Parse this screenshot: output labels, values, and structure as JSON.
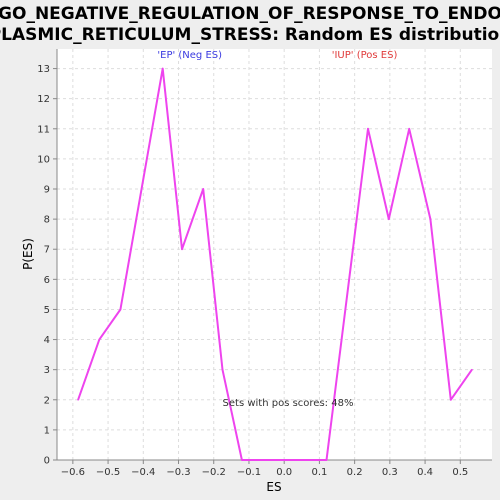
{
  "chart_data": {
    "type": "line",
    "title_lines": [
      "GO_NEGATIVE_REGULATION_OF_RESPONSE_TO_ENDO",
      "PLASMIC_RETICULUM_STRESS: Random ES distribution"
    ],
    "xlabel": "ES",
    "ylabel": "P(ES)",
    "xlim": [
      -0.645,
      0.59
    ],
    "ylim": [
      0,
      13.65
    ],
    "x_ticks": [
      -0.6,
      -0.5,
      -0.4,
      -0.3,
      -0.2,
      -0.1,
      0.0,
      0.1,
      0.2,
      0.3,
      0.4,
      0.5
    ],
    "x_tick_labels": [
      "−0.6",
      "−0.5",
      "−0.4",
      "−0.3",
      "−0.2",
      "−0.1",
      "0.0",
      "0.1",
      "0.2",
      "0.3",
      "0.4",
      "0.5"
    ],
    "y_ticks": [
      0,
      1,
      2,
      3,
      4,
      5,
      6,
      7,
      8,
      9,
      10,
      11,
      12,
      13
    ],
    "y_tick_labels": [
      "0",
      "1",
      "2",
      "3",
      "4",
      "5",
      "6",
      "7",
      "8",
      "9",
      "10",
      "11",
      "12",
      "13"
    ],
    "grid": true,
    "series": [
      {
        "color": "#ee44ee",
        "x": [
          -0.585,
          -0.525,
          -0.465,
          -0.345,
          -0.29,
          -0.23,
          -0.175,
          -0.12,
          0.0,
          0.12,
          0.238,
          0.297,
          0.355,
          0.415,
          0.473,
          0.533
        ],
        "y": [
          2,
          4,
          5,
          13,
          7,
          9,
          3,
          0,
          0,
          0,
          11,
          8,
          11,
          8,
          2,
          3
        ]
      }
    ],
    "annotations": [
      {
        "text": "'EP' (Neg ES)",
        "x": -0.36,
        "y": 13.35,
        "color": "#3a3ae0"
      },
      {
        "text": "'IUP' (Pos ES)",
        "x": 0.135,
        "y": 13.35,
        "color": "#e03a3a"
      },
      {
        "text": "Sets with pos scores: 48%",
        "x": -0.175,
        "y": 1.8,
        "color": "#333333"
      }
    ],
    "colors": {
      "background": "#eeeeee",
      "plot_background": "#ffffff",
      "grid": "#dddddd",
      "line": "#ee44ee"
    }
  }
}
